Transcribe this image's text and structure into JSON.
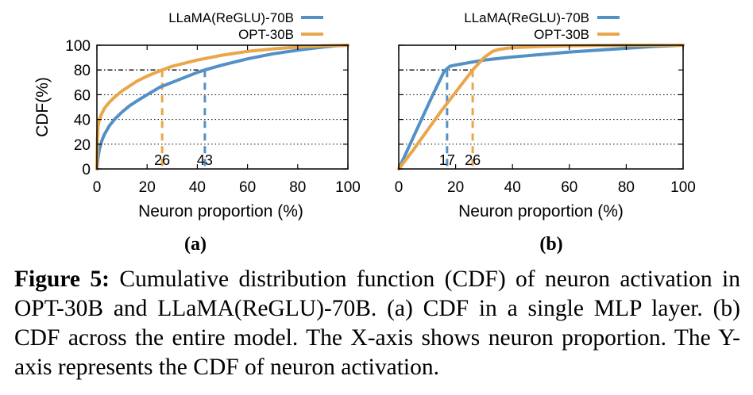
{
  "colors": {
    "llama": "#5390c6",
    "opt": "#e9a64a",
    "guide": "#000000"
  },
  "chart_data": [
    {
      "type": "line",
      "panel_label": "(a)",
      "title": "",
      "xlabel": "Neuron proportion (%)",
      "ylabel": "CDF(%)",
      "xlim": [
        0,
        100
      ],
      "ylim": [
        0,
        100
      ],
      "xticks": [
        "0",
        "20",
        "40",
        "60",
        "80",
        "100"
      ],
      "yticks": [
        "0",
        "20",
        "40",
        "60",
        "80",
        "100"
      ],
      "grid": "horizontal dotted",
      "legend": "top-left, outside",
      "series": [
        {
          "name": "LLaMA(ReGLU)-70B",
          "color": "#5390c6",
          "x": [
            0,
            0.5,
            1,
            2,
            3,
            5,
            7,
            10,
            13,
            16,
            20,
            25,
            30,
            35,
            40,
            43,
            50,
            60,
            70,
            80,
            90,
            95,
            100
          ],
          "y": [
            0,
            10,
            16,
            23,
            28,
            35,
            40,
            46,
            51,
            55,
            60,
            66,
            70,
            74,
            78,
            80,
            84,
            89,
            93,
            96,
            98.5,
            99.5,
            100
          ]
        },
        {
          "name": "OPT-30B",
          "color": "#e9a64a",
          "x": [
            0,
            0.2,
            0.5,
            1,
            2,
            3,
            5,
            7,
            10,
            13,
            16,
            20,
            26,
            30,
            40,
            50,
            60,
            70,
            80,
            90,
            100
          ],
          "y": [
            0,
            25,
            35,
            40,
            45,
            49,
            54,
            58,
            63,
            67,
            71,
            75,
            80,
            83,
            88,
            92,
            95,
            97,
            98.5,
            99.5,
            100
          ]
        }
      ],
      "annotations": [
        {
          "text": "26",
          "x": 26,
          "series": "OPT-30B",
          "y": 80
        },
        {
          "text": "43",
          "x": 43,
          "series": "LLaMA(ReGLU)-70B",
          "y": 80
        }
      ],
      "reference_line_y": 80
    },
    {
      "type": "line",
      "panel_label": "(b)",
      "title": "",
      "xlabel": "Neuron proportion (%)",
      "ylabel": "",
      "xlim": [
        0,
        100
      ],
      "ylim": [
        0,
        100
      ],
      "xticks": [
        "0",
        "20",
        "40",
        "60",
        "80",
        "100"
      ],
      "yticks": [],
      "grid": "horizontal dotted",
      "legend": "top-left, outside",
      "series": [
        {
          "name": "LLaMA(ReGLU)-70B",
          "color": "#5390c6",
          "x": [
            0,
            4,
            8,
            12,
            16,
            17,
            18,
            20,
            25,
            30,
            40,
            50,
            60,
            70,
            80,
            90,
            100
          ],
          "y": [
            0,
            20,
            40,
            60,
            79,
            81,
            83,
            84,
            86,
            88,
            90.5,
            92.5,
            94.5,
            96,
            97.5,
            99,
            100
          ]
        },
        {
          "name": "OPT-30B",
          "color": "#e9a64a",
          "x": [
            0,
            5,
            10,
            15,
            20,
            26,
            30,
            33,
            35,
            38,
            40,
            50,
            60,
            70,
            80,
            90,
            100
          ],
          "y": [
            0,
            15,
            31,
            47,
            62,
            80,
            90,
            95,
            96.5,
            97.5,
            98,
            99,
            99.5,
            99.8,
            100,
            100,
            100
          ]
        }
      ],
      "annotations": [
        {
          "text": "17",
          "x": 17,
          "series": "LLaMA(ReGLU)-70B",
          "y": 80
        },
        {
          "text": "26",
          "x": 26,
          "series": "OPT-30B",
          "y": 80
        }
      ],
      "reference_line_y": 80
    }
  ],
  "caption": {
    "label": "Figure 5:",
    "text": " Cumulative distribution function (CDF) of neuron activation in OPT-30B and LLaMA(ReGLU)-70B. (a) CDF in a single MLP layer. (b) CDF across the entire model. The X-axis shows neuron proportion. The Y-axis represents the CDF of neuron activation."
  }
}
